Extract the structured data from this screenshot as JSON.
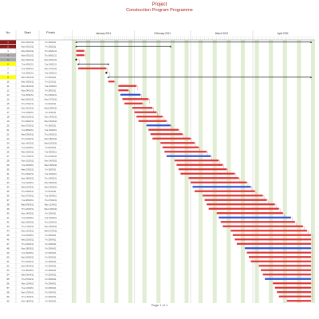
{
  "header": {
    "title": "Project",
    "subtitle": "Construction Program Programme"
  },
  "columns": {
    "id": "No",
    "start": "Start",
    "finish": "Finish"
  },
  "months": [
    "January 2011",
    "February 2011",
    "March 2011",
    "April 2011"
  ],
  "footer": {
    "page": "Page 1 of 1"
  },
  "rows": [
    {
      "id": "1",
      "start": "Mon 03/01/11",
      "finish": "Fri 29/04/11",
      "mark": "maroon"
    },
    {
      "id": "2",
      "start": "Mon 03/01/11",
      "finish": "Fri 18/02/11",
      "mark": "maroon"
    },
    {
      "id": "3",
      "start": "Mon 03/01/11",
      "finish": "Thu 06/01/11",
      "mark": "none"
    },
    {
      "id": "4",
      "start": "Mon 03/01/11",
      "finish": "Thu 06/01/11",
      "mark": "gray"
    },
    {
      "id": "5",
      "start": "Mon 03/01/11",
      "finish": "Mon 03/01/11",
      "mark": "gray"
    },
    {
      "id": "6",
      "start": "Tue 04/01/11",
      "finish": "Tue 18/01/11",
      "mark": "yellow"
    },
    {
      "id": "7",
      "start": "Tue 04/01/11",
      "finish": "Mon 17/01/11",
      "mark": "none"
    },
    {
      "id": "8",
      "start": "Tue 18/01/11",
      "finish": "Tue 18/01/11",
      "mark": "none"
    },
    {
      "id": "9",
      "start": "Wed 19/01/11",
      "finish": "Fri 29/04/11",
      "mark": "yellow"
    },
    {
      "id": "10",
      "start": "Wed 19/01/11",
      "finish": "Fri 21/01/11",
      "mark": "none"
    },
    {
      "id": "11",
      "start": "Mon 24/01/11",
      "finish": "Tue 01/02/11",
      "mark": "none"
    },
    {
      "id": "12",
      "start": "Mon 24/01/11",
      "finish": "Fri 28/01/11",
      "mark": "none"
    },
    {
      "id": "13",
      "start": "Tue 25/01/11",
      "finish": "Thu 03/02/11",
      "mark": "none"
    },
    {
      "id": "14",
      "start": "Wed 26/01/11",
      "finish": "Mon 07/02/11",
      "mark": "none"
    },
    {
      "id": "15",
      "start": "Thu 27/01/11",
      "finish": "Fri 04/02/11",
      "mark": "none"
    },
    {
      "id": "16",
      "start": "Mon 31/01/11",
      "finish": "Wed 09/02/11",
      "mark": "none"
    },
    {
      "id": "17",
      "start": "Tue 01/02/11",
      "finish": "Fri 11/02/11",
      "mark": "none"
    },
    {
      "id": "18",
      "start": "Wed 02/02/11",
      "finish": "Mon 14/02/11",
      "mark": "none"
    },
    {
      "id": "19",
      "start": "Thu 03/02/11",
      "finish": "Wed 16/02/11",
      "mark": "none"
    },
    {
      "id": "20",
      "start": "Mon 07/02/11",
      "finish": "Fri 18/02/11",
      "mark": "none"
    },
    {
      "id": "21",
      "start": "Tue 08/02/11",
      "finish": "Tue 22/02/11",
      "mark": "none"
    },
    {
      "id": "22",
      "start": "Wed 09/02/11",
      "finish": "Thu 24/02/11",
      "mark": "none"
    },
    {
      "id": "23",
      "start": "Thu 10/02/11",
      "finish": "Mon 28/02/11",
      "mark": "none"
    },
    {
      "id": "24",
      "start": "Mon 14/02/11",
      "finish": "Wed 02/03/11",
      "mark": "none"
    },
    {
      "id": "25",
      "start": "Tue 15/02/11",
      "finish": "Fri 04/03/11",
      "mark": "none"
    },
    {
      "id": "26",
      "start": "Wed 16/02/11",
      "finish": "Tue 08/03/11",
      "mark": "none"
    },
    {
      "id": "27",
      "start": "Thu 17/02/11",
      "finish": "Thu 10/03/11",
      "mark": "none"
    },
    {
      "id": "28",
      "start": "Mon 21/02/11",
      "finish": "Mon 14/03/11",
      "mark": "none"
    },
    {
      "id": "29",
      "start": "Tue 22/02/11",
      "finish": "Wed 16/03/11",
      "mark": "none"
    },
    {
      "id": "30",
      "start": "Wed 23/02/11",
      "finish": "Fri 18/03/11",
      "mark": "none"
    },
    {
      "id": "31",
      "start": "Thu 24/02/11",
      "finish": "Tue 22/03/11",
      "mark": "none"
    },
    {
      "id": "32",
      "start": "Mon 28/02/11",
      "finish": "Thu 24/03/11",
      "mark": "none"
    },
    {
      "id": "33",
      "start": "Tue 01/03/11",
      "finish": "Mon 28/03/11",
      "mark": "none"
    },
    {
      "id": "34",
      "start": "Wed 02/03/11",
      "finish": "Wed 30/03/11",
      "mark": "none"
    },
    {
      "id": "35",
      "start": "Thu 03/03/11",
      "finish": "Fri 01/04/11",
      "mark": "none"
    },
    {
      "id": "36",
      "start": "Mon 07/03/11",
      "finish": "Tue 05/04/11",
      "mark": "none"
    },
    {
      "id": "37",
      "start": "Tue 08/03/11",
      "finish": "Thu 07/04/11",
      "mark": "none"
    },
    {
      "id": "38",
      "start": "Wed 09/03/11",
      "finish": "Mon 11/04/11",
      "mark": "none"
    },
    {
      "id": "39",
      "start": "Thu 10/03/11",
      "finish": "Wed 13/04/11",
      "mark": "none"
    },
    {
      "id": "40",
      "start": "Mon 14/03/11",
      "finish": "Fri 15/04/11",
      "mark": "none"
    },
    {
      "id": "41",
      "start": "Tue 15/03/11",
      "finish": "Tue 19/04/11",
      "mark": "none"
    },
    {
      "id": "42",
      "start": "Wed 16/03/11",
      "finish": "Thu 21/04/11",
      "mark": "none"
    },
    {
      "id": "43",
      "start": "Thu 17/03/11",
      "finish": "Mon 25/04/11",
      "mark": "none"
    },
    {
      "id": "44",
      "start": "Mon 21/03/11",
      "finish": "Wed 27/04/11",
      "mark": "none"
    },
    {
      "id": "45",
      "start": "Tue 22/03/11",
      "finish": "Fri 29/04/11",
      "mark": "none"
    },
    {
      "id": "46",
      "start": "Wed 23/03/11",
      "finish": "Fri 29/04/11",
      "mark": "none"
    },
    {
      "id": "47",
      "start": "Thu 24/03/11",
      "finish": "Fri 29/04/11",
      "mark": "none"
    },
    {
      "id": "48",
      "start": "Mon 28/03/11",
      "finish": "Fri 29/04/11",
      "mark": "none"
    },
    {
      "id": "49",
      "start": "Tue 29/03/11",
      "finish": "Fri 29/04/11",
      "mark": "none"
    },
    {
      "id": "50",
      "start": "Wed 30/03/11",
      "finish": "Fri 29/04/11",
      "mark": "none"
    },
    {
      "id": "51",
      "start": "Thu 31/03/11",
      "finish": "Fri 29/04/11",
      "mark": "none"
    },
    {
      "id": "52",
      "start": "Mon 04/04/11",
      "finish": "Fri 29/04/11",
      "mark": "none"
    },
    {
      "id": "53",
      "start": "Tue 05/04/11",
      "finish": "Fri 29/04/11",
      "mark": "none"
    },
    {
      "id": "54",
      "start": "Wed 06/04/11",
      "finish": "Fri 29/04/11",
      "mark": "none"
    },
    {
      "id": "55",
      "start": "Thu 07/04/11",
      "finish": "Fri 29/04/11",
      "mark": "none"
    },
    {
      "id": "56",
      "start": "Mon 11/04/11",
      "finish": "Fri 29/04/11",
      "mark": "none"
    },
    {
      "id": "57",
      "start": "Tue 12/04/11",
      "finish": "Fri 29/04/11",
      "mark": "none"
    },
    {
      "id": "58",
      "start": "Wed 13/04/11",
      "finish": "Fri 29/04/11",
      "mark": "none"
    },
    {
      "id": "59",
      "start": "Thu 14/04/11",
      "finish": "Fri 29/04/11",
      "mark": "none"
    },
    {
      "id": "60",
      "start": "Mon 18/04/11",
      "finish": "Fri 29/04/11",
      "mark": "none"
    }
  ],
  "colors": {
    "title": "#b02020",
    "bar": "#e03030",
    "bar_blue": "#3050d0",
    "link": "#d06060",
    "grid_weekend": "#d8e8c8",
    "maroon": "#8b1a1a",
    "gray": "#a8a8a8",
    "yellow": "#ffff00"
  }
}
